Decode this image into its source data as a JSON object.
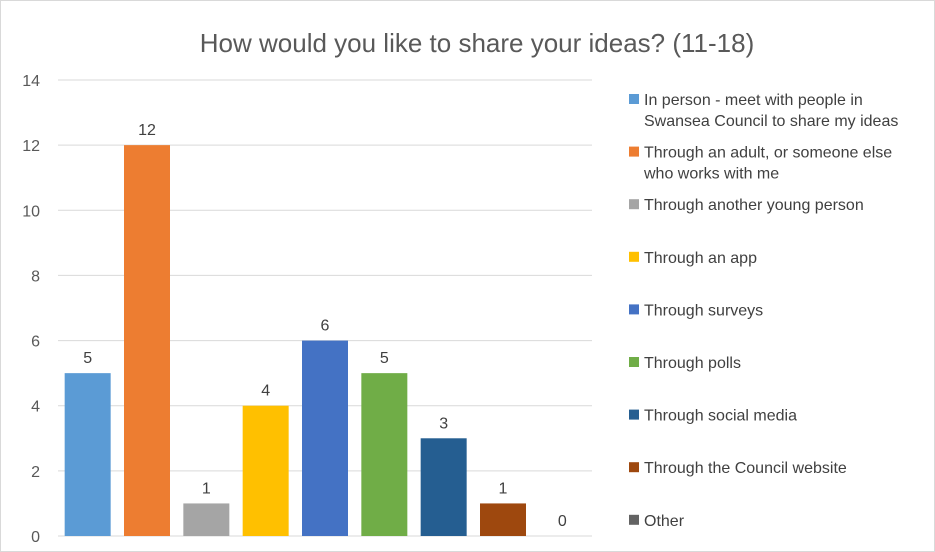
{
  "chart_data": {
    "type": "bar",
    "title": "How would you like to share your ideas? (11-18)",
    "xlabel": "",
    "ylabel": "",
    "ylim": [
      0,
      14
    ],
    "yticks": [
      0,
      2,
      4,
      6,
      8,
      10,
      12,
      14
    ],
    "grid": true,
    "legend_position": "right",
    "categories": [
      "In person - meet with people in Swansea Council to share my ideas",
      "Through an adult, or someone else who works with me",
      "Through another young person",
      "Through an app",
      "Through surveys",
      "Through polls",
      "Through social media",
      "Through the Council website",
      "Other"
    ],
    "values": [
      5,
      12,
      1,
      4,
      6,
      5,
      3,
      1,
      0
    ],
    "colors": [
      "#5B9BD5",
      "#ED7D31",
      "#A5A5A5",
      "#FFC000",
      "#4472C4",
      "#70AD47",
      "#255E91",
      "#9E480E",
      "#636363"
    ],
    "legend": [
      "In person - meet with people in Swansea Council to share my ideas",
      "Through an adult, or someone else who works with me",
      "Through another young person",
      "Through an app",
      "Through surveys",
      "Through polls",
      "Through social media",
      "Through the Council website",
      "Other"
    ],
    "legend_lines": [
      [
        "In person - meet with people in",
        "Swansea Council to share my ideas"
      ],
      [
        "Through an adult, or someone else",
        "who works with me"
      ],
      [
        "Through another young person"
      ],
      [
        "Through an app"
      ],
      [
        "Through surveys"
      ],
      [
        "Through polls"
      ],
      [
        "Through social media"
      ],
      [
        "Through the Council website"
      ],
      [
        "Other"
      ]
    ]
  }
}
